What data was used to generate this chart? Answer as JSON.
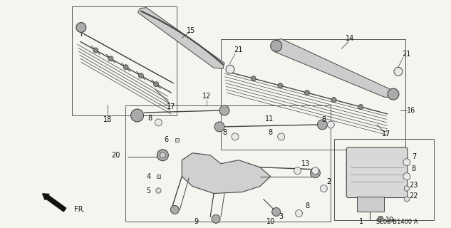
{
  "bg_color": "#f5f5f0",
  "line_color": "#444444",
  "code": "SL03-B1400 A",
  "figsize": [
    6.33,
    3.2
  ],
  "dpi": 100
}
